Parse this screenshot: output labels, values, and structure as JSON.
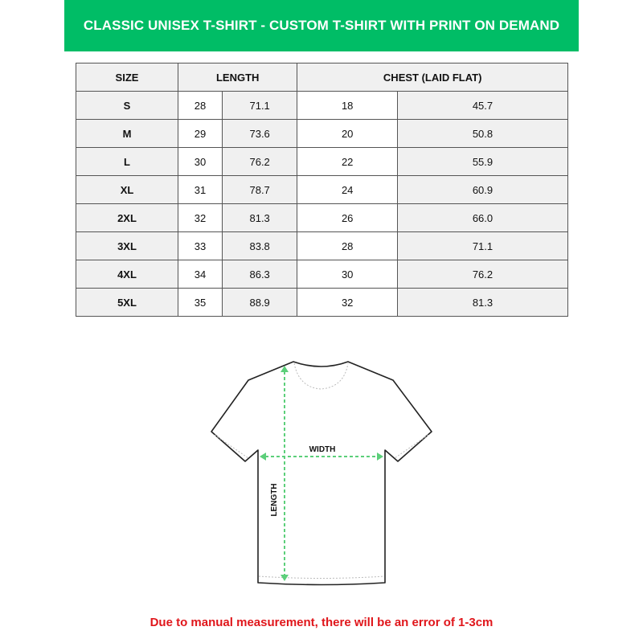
{
  "title": "CLASSIC UNISEX T-SHIRT - CUSTOM T-SHIRT WITH PRINT ON DEMAND",
  "colors": {
    "accent": "#00bd66",
    "arrow": "#5ccf7a",
    "note": "#e0161b"
  },
  "table": {
    "headers": [
      "SIZE",
      "LENGTH",
      "CHEST (LAID FLAT)"
    ],
    "rows": [
      [
        "S",
        "28",
        "71.1",
        "18",
        "45.7"
      ],
      [
        "M",
        "29",
        "73.6",
        "20",
        "50.8"
      ],
      [
        "L",
        "30",
        "76.2",
        "22",
        "55.9"
      ],
      [
        "XL",
        "31",
        "78.7",
        "24",
        "60.9"
      ],
      [
        "2XL",
        "32",
        "81.3",
        "26",
        "66.0"
      ],
      [
        "3XL",
        "33",
        "83.8",
        "28",
        "71.1"
      ],
      [
        "4XL",
        "34",
        "86.3",
        "30",
        "76.2"
      ],
      [
        "5XL",
        "35",
        "88.9",
        "32",
        "81.3"
      ]
    ]
  },
  "diagram": {
    "width_label": "WIDTH",
    "length_label": "LENGTH"
  },
  "note": "Due to manual measurement, there will be an error of 1-3cm"
}
